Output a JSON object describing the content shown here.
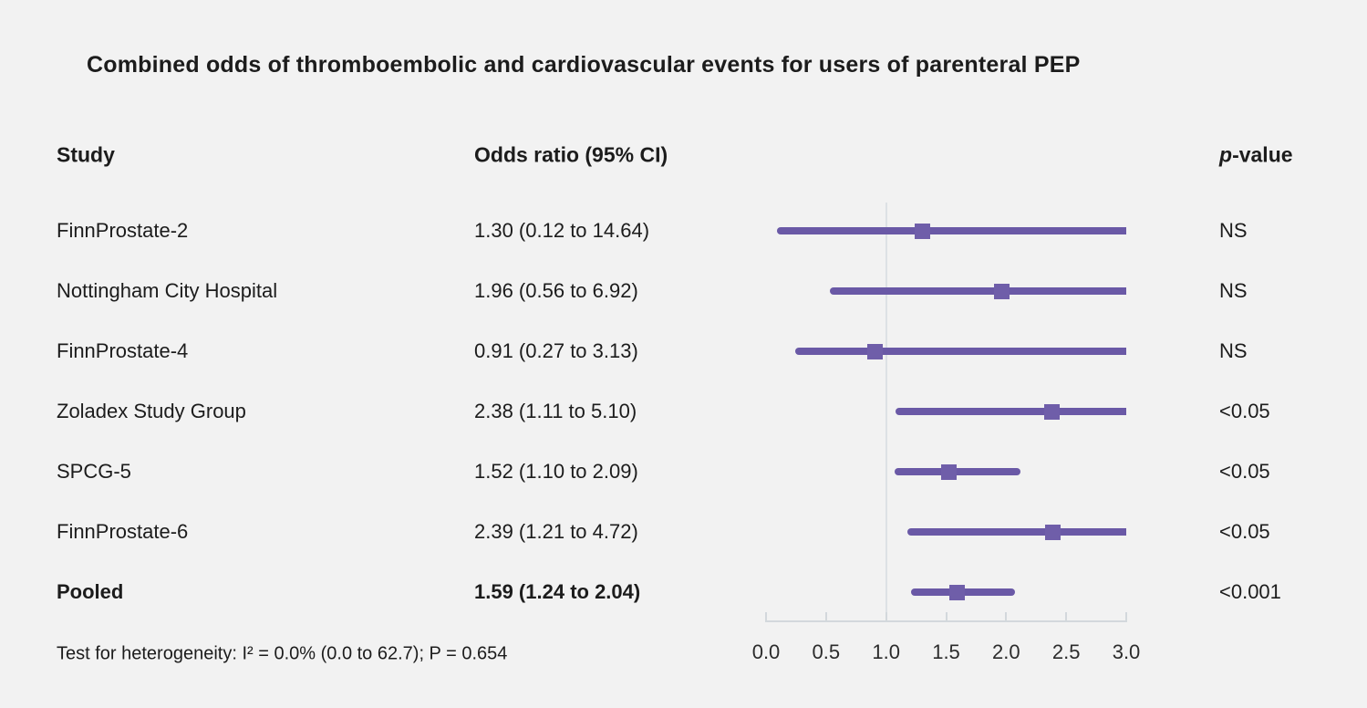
{
  "title": "Combined odds of thromboembolic and cardiovascular events for users of parenteral PEP",
  "columns": {
    "study": "Study",
    "or": "Odds ratio (95% CI)",
    "p_italic": "p",
    "p_rest": "-value"
  },
  "footer": "Test for heterogeneity: I² = 0.0% (0.0 to 62.7); P = 0.654",
  "colors": {
    "background": "#f2f2f2",
    "text": "#1c1c1c",
    "ci_line": "#6a59a6",
    "marker": "#6f5ea9",
    "axis_line": "#d3d8dc",
    "reference_line": "#dde1e5"
  },
  "chart_data": {
    "type": "forest",
    "title": "Combined odds of thromboembolic and cardiovascular events for users of parenteral PEP",
    "xlim": [
      0.0,
      3.0
    ],
    "x_ticks": [
      0.0,
      0.5,
      1.0,
      1.5,
      2.0,
      2.5,
      3.0
    ],
    "reference_x": 1.0,
    "legend_position": "none",
    "grid": false,
    "rows": [
      {
        "study": "FinnProstate-2",
        "or": 1.3,
        "ci_low": 0.12,
        "ci_high": 14.64,
        "or_label": "1.30 (0.12 to 14.64)",
        "p": "NS",
        "bold": false
      },
      {
        "study": "Nottingham City Hospital",
        "or": 1.96,
        "ci_low": 0.56,
        "ci_high": 6.92,
        "or_label": "1.96 (0.56 to 6.92)",
        "p": "NS",
        "bold": false
      },
      {
        "study": "FinnProstate-4",
        "or": 0.91,
        "ci_low": 0.27,
        "ci_high": 3.13,
        "or_label": "0.91 (0.27 to 3.13)",
        "p": "NS",
        "bold": false
      },
      {
        "study": "Zoladex Study Group",
        "or": 2.38,
        "ci_low": 1.11,
        "ci_high": 5.1,
        "or_label": "2.38 (1.11 to 5.10)",
        "p": "<0.05",
        "bold": false
      },
      {
        "study": "SPCG-5",
        "or": 1.52,
        "ci_low": 1.1,
        "ci_high": 2.09,
        "or_label": "1.52 (1.10 to 2.09)",
        "p": "<0.05",
        "bold": false
      },
      {
        "study": "FinnProstate-6",
        "or": 2.39,
        "ci_low": 1.21,
        "ci_high": 4.72,
        "or_label": "2.39 (1.21 to 4.72)",
        "p": "<0.05",
        "bold": false
      },
      {
        "study": "Pooled",
        "or": 1.59,
        "ci_low": 1.24,
        "ci_high": 2.04,
        "or_label": "1.59 (1.24 to 2.04)",
        "p": "<0.001",
        "bold": true
      }
    ]
  }
}
